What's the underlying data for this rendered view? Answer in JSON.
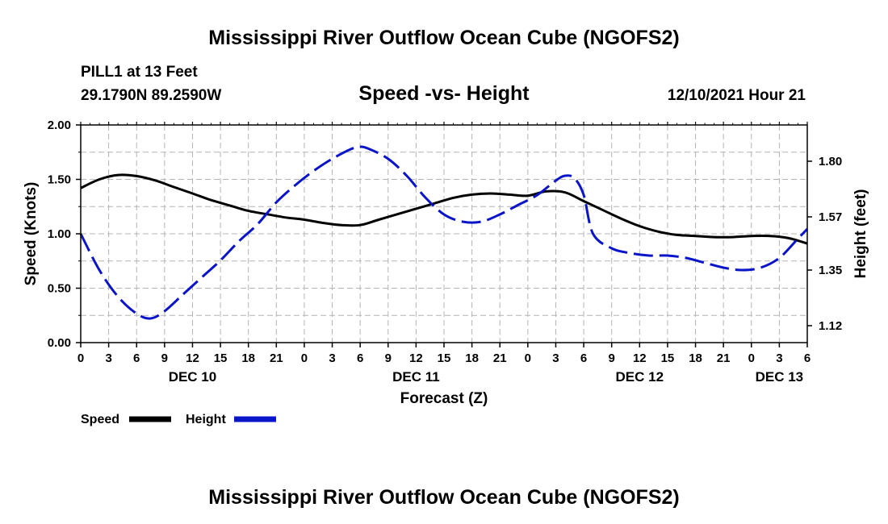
{
  "header": {
    "title": "Mississippi River Outflow Ocean Cube (NGOFS2)",
    "station": "PILL1 at 13 Feet",
    "coords": "29.1790N  89.2590W",
    "subtitle": "Speed -vs- Height",
    "timestamp": "12/10/2021 Hour 21"
  },
  "footer": {
    "title": "Mississippi River Outflow Ocean Cube (NGOFS2)"
  },
  "chart_data": {
    "type": "line",
    "xlabel": "Forecast (Z)",
    "ylabel": "Speed (Knots)",
    "y2label": "Height (feet)",
    "x_unit": "hours from DEC 10 00Z",
    "xlim": [
      0,
      78
    ],
    "ylim": [
      0,
      2.0
    ],
    "y2lim": [
      1.05,
      1.95
    ],
    "x_ticks": [
      0,
      3,
      6,
      9,
      12,
      15,
      18,
      21,
      24,
      27,
      30,
      33,
      36,
      39,
      42,
      45,
      48,
      51,
      54,
      57,
      60,
      63,
      66,
      69,
      72,
      75,
      78
    ],
    "x_tick_labels": [
      "0",
      "3",
      "6",
      "9",
      "12",
      "15",
      "18",
      "21",
      "0",
      "3",
      "6",
      "9",
      "12",
      "15",
      "18",
      "21",
      "0",
      "3",
      "6",
      "9",
      "12",
      "15",
      "18",
      "21",
      "0",
      "3",
      "6"
    ],
    "y_ticks": [
      0,
      0.5,
      1.0,
      1.5,
      2.0
    ],
    "y_tick_labels": [
      "0.00",
      "0.50",
      "1.00",
      "1.50",
      "2.00"
    ],
    "y2_ticks": [
      1.12,
      1.35,
      1.57,
      1.8
    ],
    "y2_tick_labels": [
      "1.12",
      "1.35",
      "1.57",
      "1.80"
    ],
    "date_labels": [
      {
        "label": "DEC 10",
        "x": 12
      },
      {
        "label": "DEC 11",
        "x": 36
      },
      {
        "label": "DEC 12",
        "x": 60
      },
      {
        "label": "DEC 13",
        "x": 75
      }
    ],
    "grid": true,
    "series": [
      {
        "name": "Speed",
        "color": "#000000",
        "axis": "left",
        "dash": "solid",
        "x": [
          0,
          2,
          4,
          6,
          8,
          10,
          12,
          14,
          16,
          18,
          20,
          22,
          24,
          26,
          28,
          30,
          32,
          34,
          36,
          38,
          40,
          42,
          44,
          46,
          48,
          50,
          52,
          54,
          56,
          58,
          60,
          62,
          64,
          66,
          68,
          70,
          72,
          74,
          76,
          78
        ],
        "values": [
          1.42,
          1.5,
          1.54,
          1.53,
          1.49,
          1.43,
          1.37,
          1.31,
          1.26,
          1.21,
          1.18,
          1.15,
          1.13,
          1.1,
          1.08,
          1.08,
          1.13,
          1.18,
          1.23,
          1.28,
          1.33,
          1.36,
          1.37,
          1.36,
          1.35,
          1.39,
          1.38,
          1.3,
          1.22,
          1.14,
          1.07,
          1.02,
          0.99,
          0.98,
          0.97,
          0.97,
          0.98,
          0.98,
          0.96,
          0.91
        ]
      },
      {
        "name": "Height",
        "color": "#0a14c8",
        "axis": "right",
        "dash": "dashed",
        "x": [
          0,
          2,
          4,
          6,
          7.5,
          9,
          11,
          13,
          15,
          17,
          19,
          21,
          23,
          25,
          27,
          29,
          30,
          31,
          33,
          35,
          37,
          39,
          41,
          43,
          45,
          47,
          49,
          51,
          52,
          53,
          54,
          55,
          57,
          59,
          61,
          63,
          65,
          67,
          69,
          71,
          73,
          75,
          77,
          78
        ],
        "values": [
          1.5,
          1.35,
          1.24,
          1.17,
          1.15,
          1.18,
          1.25,
          1.32,
          1.39,
          1.47,
          1.54,
          1.63,
          1.7,
          1.76,
          1.81,
          1.85,
          1.86,
          1.85,
          1.81,
          1.74,
          1.65,
          1.58,
          1.55,
          1.55,
          1.58,
          1.62,
          1.66,
          1.72,
          1.74,
          1.73,
          1.66,
          1.5,
          1.44,
          1.42,
          1.41,
          1.41,
          1.4,
          1.38,
          1.36,
          1.35,
          1.36,
          1.4,
          1.48,
          1.52
        ]
      }
    ],
    "legend": [
      {
        "label": "Speed",
        "color": "#000000"
      },
      {
        "label": "Height",
        "color": "#0a14c8"
      }
    ]
  }
}
